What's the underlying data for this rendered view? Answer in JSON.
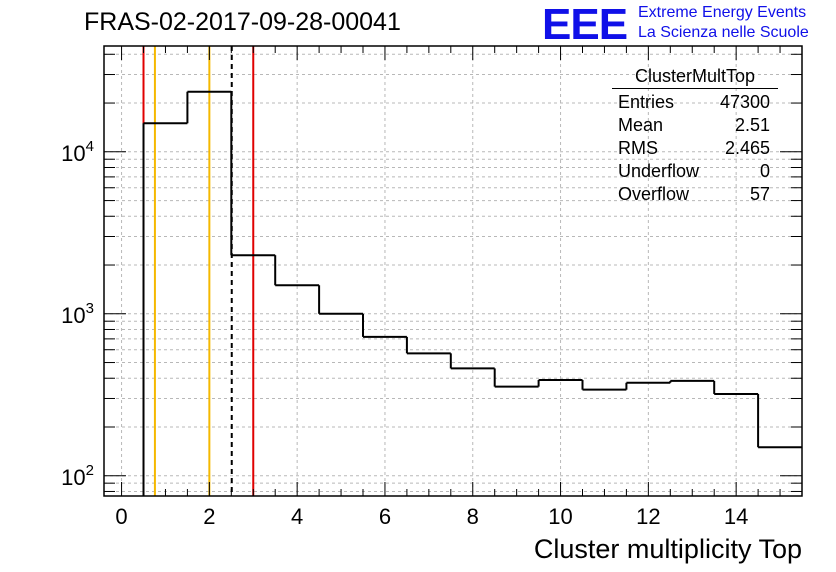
{
  "chart_data": {
    "type": "histogram",
    "title": "FRAS-02-2017-09-28-00041",
    "xlabel": "Cluster multiplicity Top",
    "ylabel": "",
    "xlim": [
      -0.4,
      15.5
    ],
    "ylim": [
      75,
      45000
    ],
    "yscale": "log",
    "grid": true,
    "x_ticks": [
      "0",
      "2",
      "4",
      "6",
      "8",
      "10",
      "12",
      "14"
    ],
    "x_tick_values": [
      0,
      2,
      4,
      6,
      8,
      10,
      12,
      14
    ],
    "y_ticks": [
      {
        "value": 100,
        "base": "10",
        "exp": "2"
      },
      {
        "value": 1000,
        "base": "10",
        "exp": "3"
      },
      {
        "value": 10000,
        "base": "10",
        "exp": "4"
      }
    ],
    "bins": [
      {
        "low": 0.5,
        "high": 1.5,
        "value": 15000
      },
      {
        "low": 1.5,
        "high": 2.5,
        "value": 23500
      },
      {
        "low": 2.5,
        "high": 3.5,
        "value": 2300
      },
      {
        "low": 3.5,
        "high": 4.5,
        "value": 1500
      },
      {
        "low": 4.5,
        "high": 5.5,
        "value": 1000
      },
      {
        "low": 5.5,
        "high": 6.5,
        "value": 720
      },
      {
        "low": 6.5,
        "high": 7.5,
        "value": 570
      },
      {
        "low": 7.5,
        "high": 8.5,
        "value": 460
      },
      {
        "low": 8.5,
        "high": 9.5,
        "value": 355
      },
      {
        "low": 9.5,
        "high": 10.5,
        "value": 390
      },
      {
        "low": 10.5,
        "high": 11.5,
        "value": 340
      },
      {
        "low": 11.5,
        "high": 12.5,
        "value": 375
      },
      {
        "low": 12.5,
        "high": 13.5,
        "value": 385
      },
      {
        "low": 13.5,
        "high": 14.5,
        "value": 320
      },
      {
        "low": 14.5,
        "high": 15.5,
        "value": 150
      }
    ],
    "vertical_lines": [
      {
        "x": 0.5,
        "color": "#e00000",
        "style": "solid"
      },
      {
        "x": 0.76,
        "color": "#f5b800",
        "style": "solid"
      },
      {
        "x": 2.0,
        "color": "#f5b800",
        "style": "solid"
      },
      {
        "x": 2.51,
        "color": "#000000",
        "style": "dashed"
      },
      {
        "x": 3.0,
        "color": "#e00000",
        "style": "solid"
      }
    ],
    "stats_box": {
      "name": "ClusterMultTop",
      "rows": [
        {
          "label": "Entries",
          "value": "47300"
        },
        {
          "label": "Mean",
          "value": "2.51"
        },
        {
          "label": "RMS",
          "value": "2.465"
        },
        {
          "label": "Underflow",
          "value": "0"
        },
        {
          "label": "Overflow",
          "value": "57"
        }
      ]
    }
  },
  "logo": {
    "text": "EEE",
    "line1": "Extreme Energy Events",
    "line2": "La Scienza nelle Scuole",
    "color": "#1010e8"
  }
}
